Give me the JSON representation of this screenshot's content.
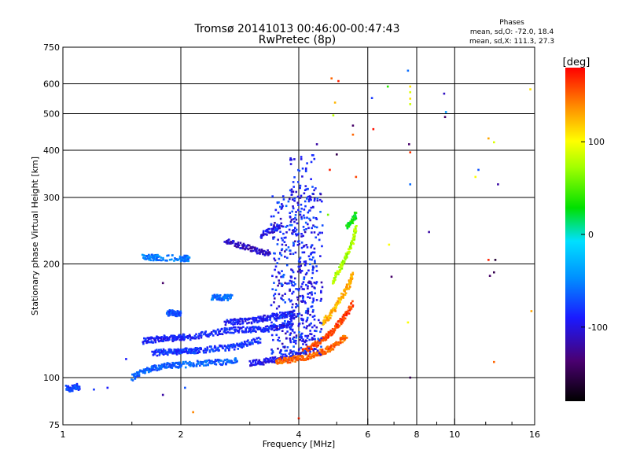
{
  "title": "Tromsø 20141013 00:46:00-00:47:43",
  "subtitle": "RwPretec (8p)",
  "stats": {
    "heading": "Phases",
    "line1": "mean, sd,O: -72.0, 18.4",
    "line2": "mean, sd,X: 111.3, 27.3"
  },
  "colorbar": {
    "label": "[deg]",
    "ticks": [
      {
        "value": 100,
        "label": "100"
      },
      {
        "value": 0,
        "label": "0"
      },
      {
        "value": -100,
        "label": "-100"
      }
    ],
    "range": [
      -180,
      180
    ]
  },
  "chart_data": {
    "type": "scatter",
    "xlabel": "Frequency [MHz]",
    "ylabel": "Stationary phase Virtual Height [km]",
    "xscale": "log",
    "yscale": "log",
    "xlim": [
      1,
      16
    ],
    "ylim": [
      75,
      750
    ],
    "xticks": [
      {
        "value": 1,
        "label": "1"
      },
      {
        "value": 2,
        "label": "2"
      },
      {
        "value": 4,
        "label": "4"
      },
      {
        "value": 6,
        "label": "6"
      },
      {
        "value": 8,
        "label": "8"
      },
      {
        "value": 10,
        "label": "10"
      },
      {
        "value": 16,
        "label": "16"
      }
    ],
    "xminor": [
      3,
      5,
      7,
      9
    ],
    "xgrid": [
      2,
      4,
      6,
      8,
      10
    ],
    "yticks": [
      {
        "value": 75,
        "label": "75"
      },
      {
        "value": 100,
        "label": "100"
      },
      {
        "value": 200,
        "label": "200"
      },
      {
        "value": 300,
        "label": "300"
      },
      {
        "value": 400,
        "label": "400"
      },
      {
        "value": 500,
        "label": "500"
      },
      {
        "value": 600,
        "label": "600"
      },
      {
        "value": 750,
        "label": "750"
      }
    ],
    "ygrid": [
      100,
      200,
      300,
      400,
      500,
      600
    ],
    "grid": true,
    "color_by": "phase [deg]",
    "traces": [
      {
        "f": [
          1.02,
          1.05,
          1.08,
          1.1
        ],
        "h": [
          94,
          93,
          95,
          94
        ],
        "phase": -75
      },
      {
        "f": [
          1.5,
          1.6,
          1.7,
          1.8,
          1.9,
          2.0,
          2.2,
          2.4,
          2.6,
          2.8
        ],
        "h": [
          100,
          104,
          106,
          107,
          108,
          108,
          109,
          110,
          110,
          111
        ],
        "phase": -65
      },
      {
        "f": [
          1.7,
          1.8,
          1.9,
          2.0,
          2.1,
          2.2,
          2.4,
          2.6,
          2.8,
          3.0,
          3.2
        ],
        "h": [
          116,
          117,
          117,
          117,
          118,
          118,
          119,
          120,
          121,
          124,
          126
        ],
        "phase": -80
      },
      {
        "f": [
          1.6,
          1.7,
          1.8,
          1.9,
          2.0,
          2.05
        ],
        "h": [
          125,
          126,
          127,
          127,
          128,
          128
        ],
        "phase": -90
      },
      {
        "f": [
          2.0,
          2.2,
          2.4,
          2.6,
          2.8,
          3.0,
          3.2,
          3.4,
          3.6,
          3.8
        ],
        "h": [
          127,
          129,
          131,
          133,
          134,
          134,
          134,
          135,
          136,
          138
        ],
        "phase": -88
      },
      {
        "f": [
          2.6,
          2.8,
          3.0,
          3.2,
          3.4,
          3.6,
          3.8,
          3.9
        ],
        "h": [
          140,
          141,
          141,
          143,
          145,
          146,
          147,
          148
        ],
        "phase": -92
      },
      {
        "f": [
          3.0,
          3.2,
          3.4,
          3.6,
          3.8,
          4.0
        ],
        "h": [
          109,
          110,
          111,
          112,
          113,
          114
        ],
        "phase": -100
      },
      {
        "f": [
          3.5,
          3.7,
          3.9,
          4.1,
          4.3,
          4.5,
          4.7,
          4.9,
          5.1,
          5.3
        ],
        "h": [
          110,
          111,
          112,
          113,
          114,
          116,
          118,
          121,
          125,
          130
        ],
        "phase": 150
      },
      {
        "f": [
          4.1,
          4.3,
          4.5,
          4.7,
          4.9,
          5.1,
          5.3,
          5.5
        ],
        "h": [
          118,
          120,
          124,
          128,
          133,
          140,
          148,
          158
        ],
        "phase": 160
      },
      {
        "f": [
          4.6,
          4.8,
          5.0,
          5.2,
          5.4,
          5.5
        ],
        "h": [
          140,
          146,
          155,
          166,
          178,
          190
        ],
        "phase": 125
      },
      {
        "f": [
          4.9,
          5.1,
          5.3,
          5.5,
          5.6
        ],
        "h": [
          180,
          195,
          210,
          230,
          250
        ],
        "phase": 75
      },
      {
        "f": [
          5.3,
          5.5,
          5.6
        ],
        "h": [
          250,
          262,
          270
        ],
        "phase": 30
      },
      {
        "f": [
          2.6,
          2.8,
          3.0,
          3.2,
          3.4
        ],
        "h": [
          230,
          225,
          220,
          215,
          214
        ],
        "phase": -110
      },
      {
        "f": [
          3.2,
          3.4,
          3.6
        ],
        "h": [
          238,
          245,
          250
        ],
        "phase": -100
      },
      {
        "f": [
          1.6,
          1.7,
          1.75,
          2.0,
          2.05,
          2.1
        ],
        "h": [
          208,
          208,
          208,
          207,
          207,
          207
        ],
        "phase": -55
      },
      {
        "f": [
          2.4,
          2.5,
          2.6,
          2.7
        ],
        "h": [
          163,
          163,
          163,
          163
        ],
        "phase": -60
      },
      {
        "f": [
          1.85,
          1.9,
          1.95,
          2.0
        ],
        "h": [
          148,
          149,
          148,
          148
        ],
        "phase": -70
      }
    ],
    "clusters": [
      {
        "f": [
          3.4,
          4.6
        ],
        "h": [
          115,
          320
        ],
        "phase": [
          -120,
          -60
        ],
        "n": 420
      },
      {
        "f": [
          3.8,
          4.4
        ],
        "h": [
          125,
          390
        ],
        "phase": [
          -110,
          -70
        ],
        "n": 180
      }
    ],
    "scatter_points": [
      {
        "f": 1.3,
        "h": 94,
        "phase": -90
      },
      {
        "f": 1.2,
        "h": 93,
        "phase": -80
      },
      {
        "f": 1.45,
        "h": 112,
        "phase": -90
      },
      {
        "f": 1.8,
        "h": 90,
        "phase": -120
      },
      {
        "f": 1.8,
        "h": 178,
        "phase": -140
      },
      {
        "f": 2.05,
        "h": 94,
        "phase": -70
      },
      {
        "f": 2.15,
        "h": 81,
        "phase": 140
      },
      {
        "f": 4.0,
        "h": 78,
        "phase": 170
      },
      {
        "f": 4.45,
        "h": 415,
        "phase": -120
      },
      {
        "f": 4.85,
        "h": 620,
        "phase": 150
      },
      {
        "f": 5.05,
        "h": 610,
        "phase": 170
      },
      {
        "f": 4.95,
        "h": 535,
        "phase": 125
      },
      {
        "f": 4.9,
        "h": 495,
        "phase": 80
      },
      {
        "f": 4.8,
        "h": 355,
        "phase": 170
      },
      {
        "f": 5.0,
        "h": 390,
        "phase": -150
      },
      {
        "f": 5.5,
        "h": 465,
        "phase": -140
      },
      {
        "f": 5.5,
        "h": 440,
        "phase": 150
      },
      {
        "f": 4.75,
        "h": 270,
        "phase": 60
      },
      {
        "f": 5.6,
        "h": 340,
        "phase": 160
      },
      {
        "f": 6.15,
        "h": 550,
        "phase": -80
      },
      {
        "f": 6.2,
        "h": 455,
        "phase": 175
      },
      {
        "f": 6.75,
        "h": 590,
        "phase": 40
      },
      {
        "f": 6.8,
        "h": 225,
        "phase": 100
      },
      {
        "f": 6.9,
        "h": 185,
        "phase": -140
      },
      {
        "f": 7.6,
        "h": 650,
        "phase": -60
      },
      {
        "f": 7.7,
        "h": 590,
        "phase": 110
      },
      {
        "f": 7.7,
        "h": 570,
        "phase": 90
      },
      {
        "f": 7.7,
        "h": 548,
        "phase": 110
      },
      {
        "f": 7.7,
        "h": 530,
        "phase": 85
      },
      {
        "f": 7.65,
        "h": 415,
        "phase": -140
      },
      {
        "f": 7.7,
        "h": 395,
        "phase": 165
      },
      {
        "f": 7.7,
        "h": 325,
        "phase": -60
      },
      {
        "f": 7.6,
        "h": 140,
        "phase": 100
      },
      {
        "f": 7.7,
        "h": 100,
        "phase": -150
      },
      {
        "f": 8.6,
        "h": 243,
        "phase": -120
      },
      {
        "f": 9.4,
        "h": 565,
        "phase": -110
      },
      {
        "f": 9.5,
        "h": 505,
        "phase": -40
      },
      {
        "f": 9.45,
        "h": 490,
        "phase": -140
      },
      {
        "f": 11.3,
        "h": 340,
        "phase": 100
      },
      {
        "f": 11.5,
        "h": 355,
        "phase": -70
      },
      {
        "f": 12.2,
        "h": 430,
        "phase": 130
      },
      {
        "f": 12.6,
        "h": 420,
        "phase": 90
      },
      {
        "f": 12.9,
        "h": 325,
        "phase": -120
      },
      {
        "f": 12.2,
        "h": 205,
        "phase": 170
      },
      {
        "f": 12.7,
        "h": 205,
        "phase": -160
      },
      {
        "f": 12.6,
        "h": 190,
        "phase": -150
      },
      {
        "f": 12.3,
        "h": 186,
        "phase": -140
      },
      {
        "f": 12.6,
        "h": 110,
        "phase": 150
      },
      {
        "f": 15.6,
        "h": 580,
        "phase": 110
      },
      {
        "f": 15.7,
        "h": 150,
        "phase": 130
      }
    ]
  }
}
